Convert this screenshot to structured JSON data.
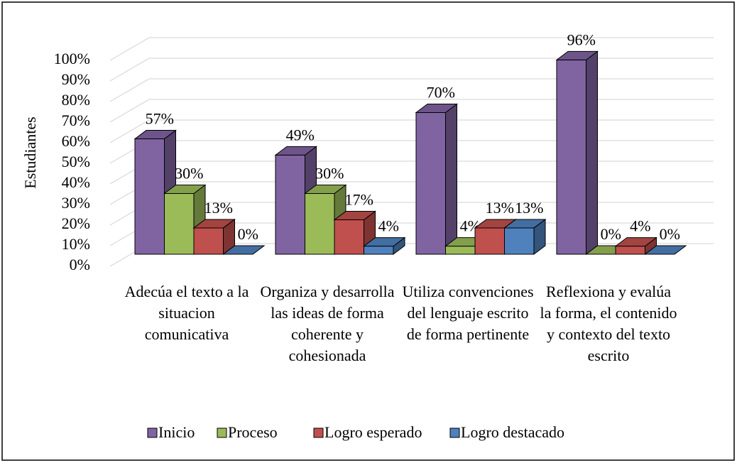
{
  "chart_data": {
    "type": "bar3d",
    "y_axis_label": "Estudiantes",
    "categories": [
      "Adecúa el texto a la situacion comunicativa",
      "Organiza y desarrolla las ideas de forma coherente y cohesionada",
      "Utiliza convenciones del lenguaje escrito de forma pertinente",
      "Reflexiona y evalúa la forma, el contenido y contexto del texto escrito"
    ],
    "series": [
      {
        "name": "Inicio",
        "color": "#8064a2",
        "values": [
          57,
          49,
          70,
          96
        ],
        "value_labels": [
          "57%",
          "49%",
          "70%",
          "96%"
        ]
      },
      {
        "name": "Proceso",
        "color": "#9bbb59",
        "values": [
          30,
          30,
          4,
          0
        ],
        "value_labels": [
          "30%",
          "30%",
          "4%",
          "0%"
        ]
      },
      {
        "name": "Logro esperado",
        "color": "#c0504d",
        "values": [
          13,
          17,
          13,
          4
        ],
        "value_labels": [
          "13%",
          "17%",
          "13%",
          "4%"
        ]
      },
      {
        "name": "Logro destacado",
        "color": "#4f81bd",
        "values": [
          0,
          4,
          13,
          0
        ],
        "value_labels": [
          "0%",
          "4%",
          "13%",
          "0%"
        ]
      }
    ],
    "ylim": [
      0,
      100
    ],
    "yticks": [
      {
        "value": 0,
        "label": "0%"
      },
      {
        "value": 10,
        "label": "10%"
      },
      {
        "value": 20,
        "label": "20%"
      },
      {
        "value": 30,
        "label": "30%"
      },
      {
        "value": 40,
        "label": "40%"
      },
      {
        "value": 50,
        "label": "50%"
      },
      {
        "value": 60,
        "label": "60%"
      },
      {
        "value": 70,
        "label": "70%"
      },
      {
        "value": 80,
        "label": "80%"
      },
      {
        "value": 90,
        "label": "90%"
      },
      {
        "value": 100,
        "label": "100%"
      }
    ],
    "grid": true,
    "legend": "bottom"
  }
}
